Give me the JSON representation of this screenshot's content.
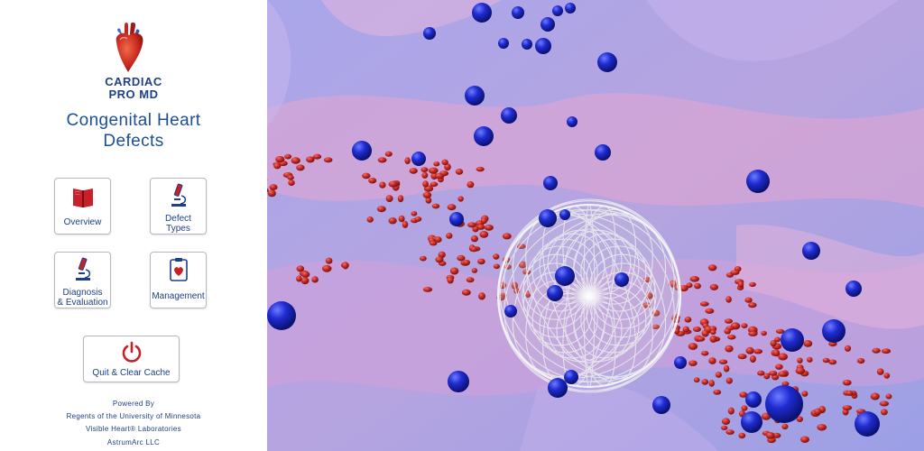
{
  "app": {
    "brand_line1": "CARDIAC",
    "brand_line2": "PRO MD",
    "title_line1": "Congenital Heart",
    "title_line2": "Defects",
    "logo_icon": "heart-icon"
  },
  "menu": {
    "overview": {
      "label": "Overview",
      "icon": "book-icon"
    },
    "defect_types": {
      "label_line1": "Defect",
      "label_line2": "Types",
      "icon": "microscope-icon"
    },
    "diagnosis": {
      "label_line1": "Diagnosis",
      "label_line2": "& Evaluation",
      "icon": "microscope-icon"
    },
    "management": {
      "label": "Management",
      "icon": "clipboard-heart-icon"
    }
  },
  "quit_button": {
    "label": "Quit & Clear Cache",
    "icon": "power-icon"
  },
  "credits": {
    "line1": "Powered By",
    "line2": "Regents of the University of Minnesota",
    "line3": "Visible Heart® Laboratories",
    "line4": "AstrumArc LLC"
  },
  "colors": {
    "brand_blue": "#1f3f86",
    "icon_red": "#c8202a",
    "scene_bg": "#a7a5e6",
    "blood_cell_red": "#c22a24",
    "blood_cell_blue": "#1a26b8"
  }
}
